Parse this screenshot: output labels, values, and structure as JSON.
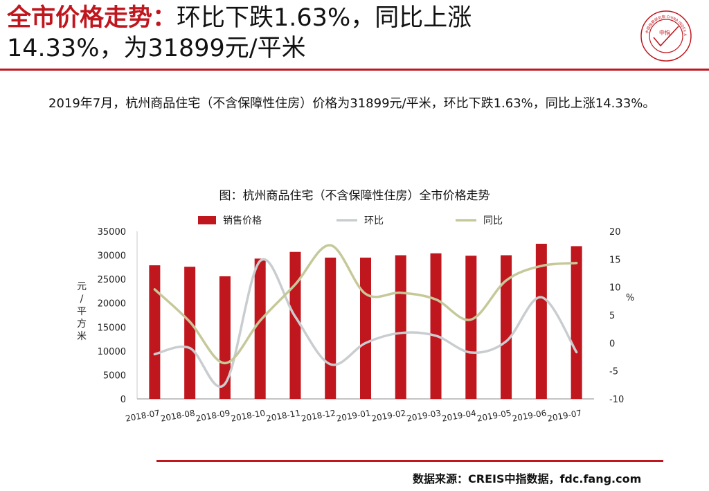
{
  "header": {
    "title_key": "全市价格走势：",
    "title_rest": "环比下跌1.63%，同比上涨",
    "title_line2": "14.33%，为31899元/平米",
    "logo_text": "中国指数研究院 CHINA INDEX ACADEMY",
    "logo_center": "中指"
  },
  "summary": "2019年7月，杭州商品住宅（不含保障性住房）价格为31899元/平米，环比下跌1.63%，同比上涨14.33%。",
  "source": "数据来源：CREIS中指数据，fdc.fang.com",
  "colors": {
    "bar": "#c0161e",
    "mom": "#c9cdcf",
    "yoy": "#c5c99a",
    "accent": "#c0161e"
  },
  "chart_data": {
    "type": "bar",
    "title": "图：杭州商品住宅（不含保障性住房）全市价格走势",
    "categories": [
      "2018-07",
      "2018-08",
      "2018-09",
      "2018-10",
      "2018-11",
      "2018-12",
      "2019-01",
      "2019-02",
      "2019-03",
      "2019-04",
      "2019-05",
      "2019-06",
      "2019-07"
    ],
    "ylabel_left": "元/平方米",
    "ylabel_right": "%",
    "ylim_left": [
      0,
      35000
    ],
    "ylim_right": [
      -10,
      20
    ],
    "yticks_left": [
      0,
      5000,
      10000,
      15000,
      20000,
      25000,
      30000,
      35000
    ],
    "yticks_right": [
      -10,
      -5,
      0,
      5,
      10,
      15,
      20
    ],
    "legend_position": "top",
    "series": [
      {
        "name": "销售价格",
        "kind": "bar",
        "axis": "left",
        "values": [
          27900,
          27600,
          25600,
          29300,
          30700,
          29500,
          29500,
          30000,
          30400,
          29900,
          30000,
          32400,
          31899
        ]
      },
      {
        "name": "环比",
        "kind": "line",
        "axis": "right",
        "values": [
          -2.0,
          -0.9,
          -7.3,
          14.7,
          4.7,
          -3.8,
          0.0,
          1.8,
          1.3,
          -1.7,
          0.3,
          8.2,
          -1.63
        ]
      },
      {
        "name": "同比",
        "kind": "line",
        "axis": "right",
        "values": [
          9.6,
          3.8,
          -3.6,
          4.0,
          10.5,
          17.5,
          8.8,
          9.0,
          7.8,
          4.2,
          11.2,
          13.8,
          14.33
        ]
      }
    ]
  }
}
